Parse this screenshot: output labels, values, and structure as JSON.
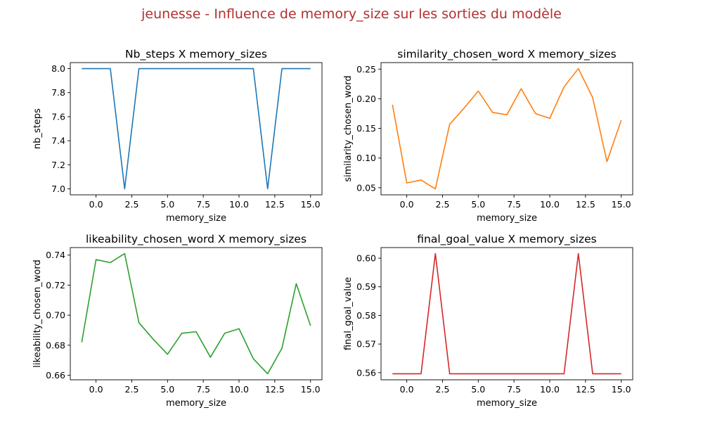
{
  "figure": {
    "suptitle": "jeunesse - Influence de memory_size sur les sorties du modèle",
    "suptitle_color": "#b2302f"
  },
  "chart_data": [
    {
      "type": "line",
      "title": "Nb_steps X memory_sizes",
      "xlabel": "memory_size",
      "ylabel": "nb_steps",
      "color": "#1f77b4",
      "xlim": [
        -1.8,
        15.8
      ],
      "ylim": [
        6.95,
        8.05
      ],
      "xticks": [
        0,
        2.5,
        5,
        7.5,
        10,
        12.5,
        15
      ],
      "xtick_labels": [
        "0.0",
        "2.5",
        "5.0",
        "7.5",
        "10.0",
        "12.5",
        "15.0"
      ],
      "yticks": [
        7.0,
        7.2,
        7.4,
        7.6,
        7.8,
        8.0
      ],
      "ytick_labels": [
        "7.0",
        "7.2",
        "7.4",
        "7.6",
        "7.8",
        "8.0"
      ],
      "x": [
        -1,
        0,
        1,
        2,
        3,
        4,
        5,
        6,
        7,
        8,
        9,
        10,
        11,
        12,
        13,
        14,
        15
      ],
      "y": [
        8,
        8,
        8,
        7,
        8,
        8,
        8,
        8,
        8,
        8,
        8,
        8,
        8,
        7,
        8,
        8,
        8
      ]
    },
    {
      "type": "line",
      "title": "similarity_chosen_word X memory_sizes",
      "xlabel": "memory_size",
      "ylabel": "similarity_chosen_word",
      "color": "#ff7f0e",
      "xlim": [
        -1.8,
        15.8
      ],
      "ylim": [
        0.038,
        0.261
      ],
      "xticks": [
        0,
        2.5,
        5,
        7.5,
        10,
        12.5,
        15
      ],
      "xtick_labels": [
        "0.0",
        "2.5",
        "5.0",
        "7.5",
        "10.0",
        "12.5",
        "15.0"
      ],
      "yticks": [
        0.05,
        0.1,
        0.15,
        0.2,
        0.25
      ],
      "ytick_labels": [
        "0.05",
        "0.10",
        "0.15",
        "0.20",
        "0.25"
      ],
      "x": [
        -1,
        0,
        1,
        2,
        3,
        4,
        5,
        6,
        7,
        8,
        9,
        10,
        11,
        12,
        13,
        14,
        15
      ],
      "y": [
        0.19,
        0.058,
        0.063,
        0.048,
        0.157,
        0.184,
        0.213,
        0.177,
        0.173,
        0.217,
        0.175,
        0.167,
        0.22,
        0.251,
        0.202,
        0.094,
        0.164
      ]
    },
    {
      "type": "line",
      "title": "likeability_chosen_word X memory_sizes",
      "xlabel": "memory_size",
      "ylabel": "likeability_chosen_word",
      "color": "#2ca02c",
      "xlim": [
        -1.8,
        15.8
      ],
      "ylim": [
        0.657,
        0.745
      ],
      "xticks": [
        0,
        2.5,
        5,
        7.5,
        10,
        12.5,
        15
      ],
      "xtick_labels": [
        "0.0",
        "2.5",
        "5.0",
        "7.5",
        "10.0",
        "12.5",
        "15.0"
      ],
      "yticks": [
        0.66,
        0.68,
        0.7,
        0.72,
        0.74
      ],
      "ytick_labels": [
        "0.66",
        "0.68",
        "0.70",
        "0.72",
        "0.74"
      ],
      "x": [
        -1,
        0,
        1,
        2,
        3,
        4,
        5,
        6,
        7,
        8,
        9,
        10,
        11,
        12,
        13,
        14,
        15
      ],
      "y": [
        0.682,
        0.737,
        0.735,
        0.741,
        0.695,
        0.684,
        0.674,
        0.688,
        0.689,
        0.672,
        0.688,
        0.691,
        0.671,
        0.661,
        0.678,
        0.721,
        0.693
      ]
    },
    {
      "type": "line",
      "title": "final_goal_value X memory_sizes",
      "xlabel": "memory_size",
      "ylabel": "final_goal_value",
      "color": "#d62728",
      "xlim": [
        -1.8,
        15.8
      ],
      "ylim": [
        0.5575,
        0.6037
      ],
      "xticks": [
        0,
        2.5,
        5,
        7.5,
        10,
        12.5,
        15
      ],
      "xtick_labels": [
        "0.0",
        "2.5",
        "5.0",
        "7.5",
        "10.0",
        "12.5",
        "15.0"
      ],
      "yticks": [
        0.56,
        0.57,
        0.58,
        0.59,
        0.6
      ],
      "ytick_labels": [
        "0.56",
        "0.57",
        "0.58",
        "0.59",
        "0.60"
      ],
      "x": [
        -1,
        0,
        1,
        2,
        3,
        4,
        5,
        6,
        7,
        8,
        9,
        10,
        11,
        12,
        13,
        14,
        15
      ],
      "y": [
        0.5596,
        0.5596,
        0.5596,
        0.6016,
        0.5596,
        0.5596,
        0.5596,
        0.5596,
        0.5596,
        0.5596,
        0.5596,
        0.5596,
        0.5596,
        0.6016,
        0.5596,
        0.5596,
        0.5596
      ]
    }
  ]
}
